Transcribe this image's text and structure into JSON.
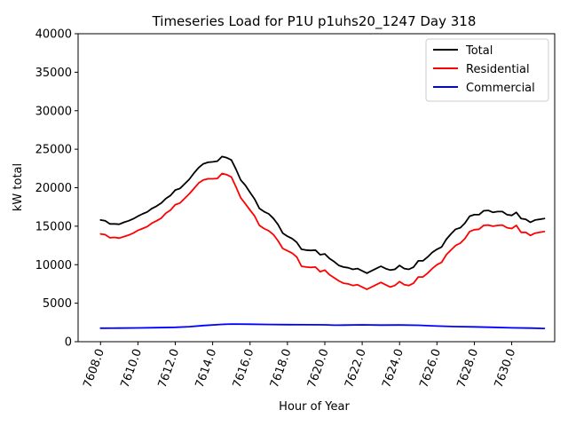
{
  "chart_data": {
    "type": "line",
    "title": "Timeseries Load for P1U p1uhs20_1247  Day 318",
    "xlabel": "Hour of Year",
    "ylabel": "kW total",
    "xlim": [
      7606.8,
      7632.3
    ],
    "ylim": [
      0,
      40000
    ],
    "xticks": [
      7608,
      7610,
      7612,
      7614,
      7616,
      7618,
      7620,
      7622,
      7624,
      7626,
      7628,
      7630
    ],
    "xtick_labels": [
      "7608.0",
      "7610.0",
      "7612.0",
      "7614.0",
      "7616.0",
      "7618.0",
      "7620.0",
      "7622.0",
      "7624.0",
      "7626.0",
      "7628.0",
      "7630.0"
    ],
    "yticks": [
      0,
      5000,
      10000,
      15000,
      20000,
      25000,
      30000,
      35000,
      40000
    ],
    "ytick_labels": [
      "0",
      "5000",
      "10000",
      "15000",
      "20000",
      "25000",
      "30000",
      "35000",
      "40000"
    ],
    "grid": false,
    "legend_position": "top-right",
    "series": [
      {
        "name": "Total",
        "color": "#000000",
        "points": [
          [
            7608.0,
            15800
          ],
          [
            7608.25,
            15700
          ],
          [
            7608.5,
            15300
          ],
          [
            7608.75,
            15300
          ],
          [
            7609.0,
            15250
          ],
          [
            7609.25,
            15500
          ],
          [
            7609.5,
            15700
          ],
          [
            7609.75,
            15950
          ],
          [
            7610.0,
            16300
          ],
          [
            7610.25,
            16600
          ],
          [
            7610.5,
            16850
          ],
          [
            7610.75,
            17300
          ],
          [
            7611.0,
            17600
          ],
          [
            7611.25,
            18000
          ],
          [
            7611.5,
            18600
          ],
          [
            7611.75,
            19000
          ],
          [
            7612.0,
            19700
          ],
          [
            7612.25,
            19900
          ],
          [
            7612.5,
            20500
          ],
          [
            7612.75,
            21100
          ],
          [
            7613.0,
            21900
          ],
          [
            7613.25,
            22600
          ],
          [
            7613.5,
            23100
          ],
          [
            7613.75,
            23300
          ],
          [
            7614.0,
            23350
          ],
          [
            7614.25,
            23450
          ],
          [
            7614.5,
            24050
          ],
          [
            7614.75,
            23900
          ],
          [
            7615.0,
            23600
          ],
          [
            7615.25,
            22400
          ],
          [
            7615.5,
            21000
          ],
          [
            7615.75,
            20300
          ],
          [
            7616.0,
            19400
          ],
          [
            7616.25,
            18500
          ],
          [
            7616.5,
            17300
          ],
          [
            7616.75,
            16900
          ],
          [
            7617.0,
            16600
          ],
          [
            7617.25,
            16000
          ],
          [
            7617.5,
            15200
          ],
          [
            7617.75,
            14100
          ],
          [
            7618.0,
            13700
          ],
          [
            7618.25,
            13400
          ],
          [
            7618.5,
            12900
          ],
          [
            7618.75,
            12000
          ],
          [
            7619.0,
            11900
          ],
          [
            7619.25,
            11850
          ],
          [
            7619.5,
            11900
          ],
          [
            7619.75,
            11300
          ],
          [
            7620.0,
            11400
          ],
          [
            7620.25,
            10800
          ],
          [
            7620.5,
            10400
          ],
          [
            7620.75,
            9900
          ],
          [
            7621.0,
            9700
          ],
          [
            7621.25,
            9600
          ],
          [
            7621.5,
            9400
          ],
          [
            7621.75,
            9500
          ],
          [
            7622.0,
            9200
          ],
          [
            7622.25,
            8900
          ],
          [
            7622.5,
            9200
          ],
          [
            7622.75,
            9500
          ],
          [
            7623.0,
            9800
          ],
          [
            7623.25,
            9500
          ],
          [
            7623.5,
            9300
          ],
          [
            7623.75,
            9400
          ],
          [
            7624.0,
            9900
          ],
          [
            7624.25,
            9500
          ],
          [
            7624.5,
            9400
          ],
          [
            7624.75,
            9700
          ],
          [
            7625.0,
            10500
          ],
          [
            7625.25,
            10500
          ],
          [
            7625.5,
            11000
          ],
          [
            7625.75,
            11600
          ],
          [
            7626.0,
            12000
          ],
          [
            7626.25,
            12300
          ],
          [
            7626.5,
            13300
          ],
          [
            7626.75,
            14000
          ],
          [
            7627.0,
            14600
          ],
          [
            7627.25,
            14800
          ],
          [
            7627.5,
            15400
          ],
          [
            7627.75,
            16300
          ],
          [
            7628.0,
            16500
          ],
          [
            7628.25,
            16500
          ],
          [
            7628.5,
            17000
          ],
          [
            7628.75,
            17050
          ],
          [
            7629.0,
            16800
          ],
          [
            7629.25,
            16900
          ],
          [
            7629.5,
            16900
          ],
          [
            7629.75,
            16500
          ],
          [
            7630.0,
            16400
          ],
          [
            7630.25,
            16800
          ],
          [
            7630.5,
            16000
          ],
          [
            7630.75,
            15900
          ],
          [
            7631.0,
            15500
          ],
          [
            7631.25,
            15800
          ],
          [
            7631.5,
            15900
          ],
          [
            7631.75,
            16000
          ]
        ]
      },
      {
        "name": "Residential",
        "color": "#ff0000",
        "points": [
          [
            7608.0,
            14000
          ],
          [
            7608.25,
            13900
          ],
          [
            7608.5,
            13500
          ],
          [
            7608.75,
            13550
          ],
          [
            7609.0,
            13450
          ],
          [
            7609.25,
            13650
          ],
          [
            7609.5,
            13850
          ],
          [
            7609.75,
            14100
          ],
          [
            7610.0,
            14450
          ],
          [
            7610.25,
            14700
          ],
          [
            7610.5,
            14950
          ],
          [
            7610.75,
            15400
          ],
          [
            7611.0,
            15700
          ],
          [
            7611.25,
            16050
          ],
          [
            7611.5,
            16700
          ],
          [
            7611.75,
            17100
          ],
          [
            7612.0,
            17800
          ],
          [
            7612.25,
            18000
          ],
          [
            7612.5,
            18600
          ],
          [
            7612.75,
            19200
          ],
          [
            7613.0,
            19900
          ],
          [
            7613.25,
            20600
          ],
          [
            7613.5,
            21000
          ],
          [
            7613.75,
            21150
          ],
          [
            7614.0,
            21150
          ],
          [
            7614.25,
            21200
          ],
          [
            7614.5,
            21850
          ],
          [
            7614.75,
            21700
          ],
          [
            7615.0,
            21400
          ],
          [
            7615.25,
            20100
          ],
          [
            7615.5,
            18700
          ],
          [
            7615.75,
            17900
          ],
          [
            7616.0,
            17100
          ],
          [
            7616.25,
            16300
          ],
          [
            7616.5,
            15100
          ],
          [
            7616.75,
            14700
          ],
          [
            7617.0,
            14400
          ],
          [
            7617.25,
            13900
          ],
          [
            7617.5,
            13100
          ],
          [
            7617.75,
            12100
          ],
          [
            7618.0,
            11800
          ],
          [
            7618.25,
            11500
          ],
          [
            7618.5,
            11000
          ],
          [
            7618.75,
            9800
          ],
          [
            7619.0,
            9700
          ],
          [
            7619.25,
            9650
          ],
          [
            7619.5,
            9700
          ],
          [
            7619.75,
            9100
          ],
          [
            7620.0,
            9300
          ],
          [
            7620.25,
            8700
          ],
          [
            7620.5,
            8300
          ],
          [
            7620.75,
            7900
          ],
          [
            7621.0,
            7600
          ],
          [
            7621.25,
            7500
          ],
          [
            7621.5,
            7300
          ],
          [
            7621.75,
            7400
          ],
          [
            7622.0,
            7100
          ],
          [
            7622.25,
            6800
          ],
          [
            7622.5,
            7100
          ],
          [
            7622.75,
            7400
          ],
          [
            7623.0,
            7700
          ],
          [
            7623.25,
            7400
          ],
          [
            7623.5,
            7100
          ],
          [
            7623.75,
            7300
          ],
          [
            7624.0,
            7800
          ],
          [
            7624.25,
            7400
          ],
          [
            7624.5,
            7300
          ],
          [
            7624.75,
            7600
          ],
          [
            7625.0,
            8400
          ],
          [
            7625.25,
            8400
          ],
          [
            7625.5,
            8900
          ],
          [
            7625.75,
            9500
          ],
          [
            7626.0,
            10000
          ],
          [
            7626.25,
            10300
          ],
          [
            7626.5,
            11300
          ],
          [
            7626.75,
            11900
          ],
          [
            7627.0,
            12500
          ],
          [
            7627.25,
            12800
          ],
          [
            7627.5,
            13400
          ],
          [
            7627.75,
            14300
          ],
          [
            7628.0,
            14550
          ],
          [
            7628.25,
            14600
          ],
          [
            7628.5,
            15100
          ],
          [
            7628.75,
            15150
          ],
          [
            7629.0,
            15000
          ],
          [
            7629.25,
            15100
          ],
          [
            7629.5,
            15150
          ],
          [
            7629.75,
            14800
          ],
          [
            7630.0,
            14700
          ],
          [
            7630.25,
            15100
          ],
          [
            7630.5,
            14200
          ],
          [
            7630.75,
            14200
          ],
          [
            7631.0,
            13800
          ],
          [
            7631.25,
            14100
          ],
          [
            7631.5,
            14200
          ],
          [
            7631.75,
            14300
          ]
        ]
      },
      {
        "name": "Commercial",
        "color": "#0000ff",
        "points": [
          [
            7608.0,
            1750
          ],
          [
            7609.0,
            1760
          ],
          [
            7610.0,
            1790
          ],
          [
            7611.0,
            1820
          ],
          [
            7612.0,
            1870
          ],
          [
            7612.75,
            1950
          ],
          [
            7613.5,
            2100
          ],
          [
            7614.5,
            2250
          ],
          [
            7615.0,
            2290
          ],
          [
            7616.0,
            2270
          ],
          [
            7617.0,
            2240
          ],
          [
            7618.0,
            2210
          ],
          [
            7619.0,
            2200
          ],
          [
            7620.0,
            2190
          ],
          [
            7620.5,
            2140
          ],
          [
            7621.0,
            2150
          ],
          [
            7622.0,
            2190
          ],
          [
            7623.0,
            2160
          ],
          [
            7624.0,
            2170
          ],
          [
            7625.0,
            2130
          ],
          [
            7626.0,
            2030
          ],
          [
            7627.0,
            1960
          ],
          [
            7628.0,
            1920
          ],
          [
            7629.0,
            1870
          ],
          [
            7630.0,
            1800
          ],
          [
            7631.0,
            1760
          ],
          [
            7631.75,
            1720
          ]
        ]
      }
    ]
  }
}
